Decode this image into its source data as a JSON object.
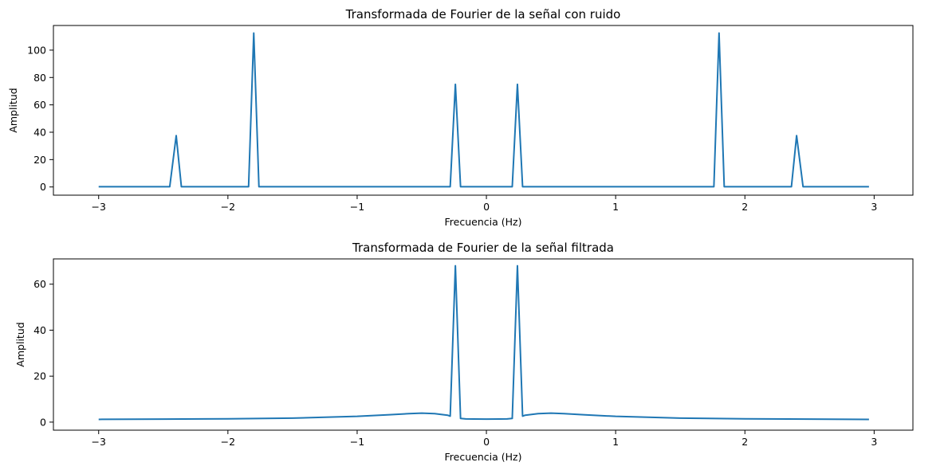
{
  "colors": {
    "series": "#1f77b4",
    "axes": "#000000",
    "background": "#ffffff"
  },
  "chart_data": [
    {
      "type": "line",
      "title": "Transformada de Fourier de la señal con ruido",
      "xlabel": "Frecuencia (Hz)",
      "ylabel": "Amplitud",
      "xlim": [
        -3.35,
        3.3
      ],
      "ylim": [
        -6,
        118
      ],
      "grid": false,
      "xticks": [
        -3,
        -2,
        -1,
        0,
        1,
        2,
        3
      ],
      "xtick_labels": [
        "−3",
        "−2",
        "−1",
        "0",
        "1",
        "2",
        "3"
      ],
      "yticks": [
        0,
        20,
        40,
        60,
        80,
        100
      ],
      "ytick_labels": [
        "0",
        "20",
        "40",
        "60",
        "80",
        "100"
      ],
      "series": [
        {
          "x": [
            -3.0,
            -2.45,
            -2.4,
            -2.36,
            -1.84,
            -1.8,
            -1.76,
            -0.28,
            -0.24,
            -0.2,
            -0.02,
            0.02,
            0.2,
            0.24,
            0.28,
            1.76,
            1.8,
            1.84,
            2.36,
            2.4,
            2.45,
            2.96
          ],
          "values": [
            0.2,
            0.2,
            37.5,
            0.2,
            0.2,
            112.5,
            0.2,
            0.2,
            75,
            0.2,
            0.2,
            0.2,
            0.2,
            75,
            0.2,
            0.2,
            112.5,
            0.2,
            0.2,
            37.5,
            0.2,
            0.2
          ]
        }
      ]
    },
    {
      "type": "line",
      "title": "Transformada de Fourier de la señal filtrada",
      "xlabel": "Frecuencia (Hz)",
      "ylabel": "Amplitud",
      "xlim": [
        -3.35,
        3.3
      ],
      "ylim": [
        -3.5,
        71
      ],
      "grid": false,
      "xticks": [
        -3,
        -2,
        -1,
        0,
        1,
        2,
        3
      ],
      "xtick_labels": [
        "−3",
        "−2",
        "−1",
        "0",
        "1",
        "2",
        "3"
      ],
      "yticks": [
        0,
        20,
        40,
        60
      ],
      "ytick_labels": [
        "0",
        "20",
        "40",
        "60"
      ],
      "series": [
        {
          "x": [
            -3.0,
            -2.5,
            -2.0,
            -1.5,
            -1.0,
            -0.75,
            -0.6,
            -0.5,
            -0.4,
            -0.3,
            -0.28,
            -0.24,
            -0.2,
            -0.16,
            -0.1,
            0.0,
            0.1,
            0.16,
            0.2,
            0.24,
            0.28,
            0.3,
            0.4,
            0.5,
            0.6,
            0.75,
            1.0,
            1.5,
            2.0,
            2.5,
            2.96
          ],
          "values": [
            1.2,
            1.3,
            1.45,
            1.75,
            2.5,
            3.2,
            3.7,
            3.9,
            3.7,
            3.0,
            2.6,
            68,
            1.6,
            1.4,
            1.35,
            1.3,
            1.35,
            1.4,
            1.6,
            68,
            2.6,
            3.0,
            3.7,
            3.9,
            3.7,
            3.2,
            2.5,
            1.75,
            1.45,
            1.3,
            1.2
          ]
        }
      ]
    }
  ]
}
